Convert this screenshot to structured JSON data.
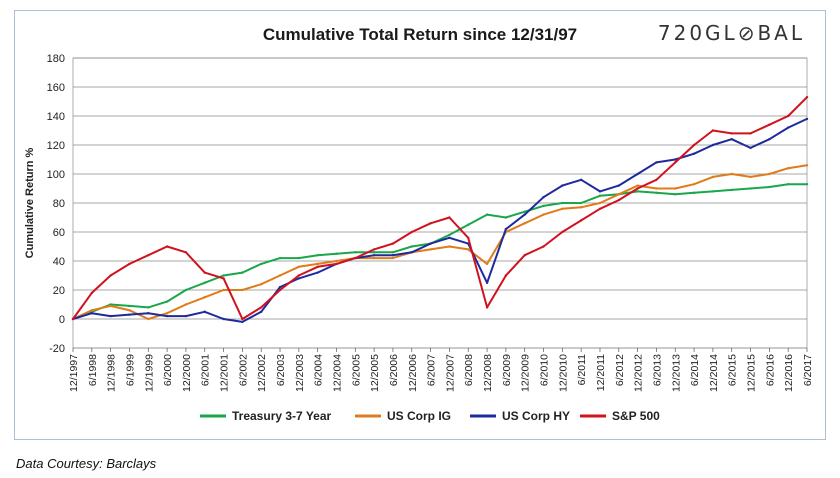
{
  "header": {
    "logo_text": "720GL⊘BAL"
  },
  "footer": {
    "source": "Data Courtesy: Barclays"
  },
  "colors": {
    "treasury": "#1aa64b",
    "corp_ig": "#e07b1a",
    "corp_hy": "#1f2a9c",
    "sp500": "#d0121f"
  },
  "chart_data": {
    "type": "line",
    "title": "Cumulative Total Return since 12/31/97",
    "ylabel": "Cumulative Return %",
    "xlabel": "",
    "ylim": [
      -20,
      180
    ],
    "yticks": [
      -20,
      0,
      20,
      40,
      60,
      80,
      100,
      120,
      140,
      160,
      180
    ],
    "grid": true,
    "legend_position": "bottom",
    "categories": [
      "12/1997",
      "6/1998",
      "12/1998",
      "6/1999",
      "12/1999",
      "6/2000",
      "12/2000",
      "6/2001",
      "12/2001",
      "6/2002",
      "12/2002",
      "6/2003",
      "12/2003",
      "6/2004",
      "12/2004",
      "6/2005",
      "12/2005",
      "6/2006",
      "12/2006",
      "6/2007",
      "12/2007",
      "6/2008",
      "12/2008",
      "6/2009",
      "12/2009",
      "6/2010",
      "12/2010",
      "6/2011",
      "12/2011",
      "6/2012",
      "12/2012",
      "6/2013",
      "12/2013",
      "6/2014",
      "12/2014",
      "6/2015",
      "12/2015",
      "6/2016",
      "12/2016",
      "6/2017"
    ],
    "series": [
      {
        "name": "Treasury 3-7 Year",
        "color": "#1aa64b",
        "values": [
          0,
          5,
          10,
          9,
          8,
          12,
          20,
          25,
          30,
          32,
          38,
          42,
          42,
          44,
          45,
          46,
          46,
          46,
          50,
          52,
          58,
          65,
          72,
          70,
          74,
          78,
          80,
          80,
          85,
          86,
          88,
          87,
          86,
          87,
          88,
          89,
          90,
          91,
          93,
          93
        ]
      },
      {
        "name": "US Corp IG",
        "color": "#e07b1a",
        "values": [
          0,
          6,
          9,
          6,
          0,
          4,
          10,
          15,
          20,
          20,
          24,
          30,
          36,
          38,
          40,
          42,
          42,
          42,
          46,
          48,
          50,
          48,
          38,
          60,
          66,
          72,
          76,
          77,
          80,
          86,
          92,
          90,
          90,
          93,
          98,
          100,
          98,
          100,
          104,
          106
        ]
      },
      {
        "name": "US Corp HY",
        "color": "#1f2a9c",
        "values": [
          0,
          4,
          2,
          3,
          4,
          2,
          2,
          5,
          0,
          -2,
          5,
          22,
          28,
          32,
          38,
          42,
          44,
          44,
          46,
          52,
          56,
          52,
          25,
          62,
          72,
          84,
          92,
          96,
          88,
          92,
          100,
          108,
          110,
          114,
          120,
          124,
          118,
          124,
          132,
          138
        ]
      },
      {
        "name": "S&P 500",
        "color": "#d0121f",
        "values": [
          0,
          18,
          30,
          38,
          44,
          50,
          46,
          32,
          28,
          0,
          8,
          20,
          30,
          36,
          38,
          42,
          48,
          52,
          60,
          66,
          70,
          56,
          8,
          30,
          44,
          50,
          60,
          68,
          76,
          82,
          90,
          96,
          108,
          120,
          130,
          128,
          128,
          134,
          140,
          153
        ]
      }
    ]
  }
}
